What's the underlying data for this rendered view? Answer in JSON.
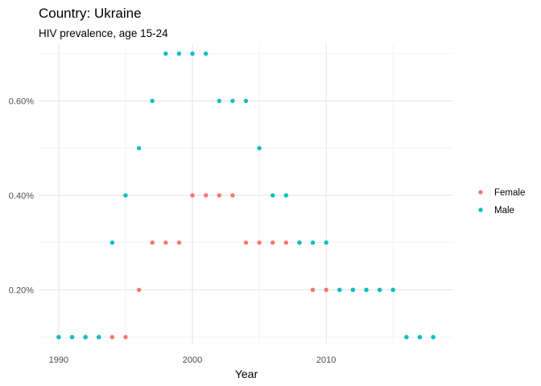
{
  "chart_data": {
    "type": "scatter",
    "title": "Country: Ukraine",
    "subtitle": "HIV prevalence, age 15-24",
    "xlabel": "Year",
    "ylabel": "",
    "xlim": [
      1988.5,
      2019.5
    ],
    "ylim": [
      0.085,
      0.72
    ],
    "x_ticks": [
      1990,
      2000,
      2010
    ],
    "x_tick_labels": [
      "1990",
      "2000",
      "2010"
    ],
    "y_ticks": [
      0.2,
      0.4,
      0.6
    ],
    "y_tick_labels": [
      "0.20%",
      "0.40%",
      "0.60%"
    ],
    "grid": true,
    "legend_position": "right",
    "series": [
      {
        "name": "Female",
        "color": "#F8766D",
        "points": [
          [
            1990,
            0.1
          ],
          [
            1991,
            0.1
          ],
          [
            1992,
            0.1
          ],
          [
            1993,
            0.1
          ],
          [
            1994,
            0.1
          ],
          [
            1995,
            0.1
          ],
          [
            1996,
            0.2
          ],
          [
            1997,
            0.3
          ],
          [
            1998,
            0.3
          ],
          [
            1999,
            0.3
          ],
          [
            2000,
            0.4
          ],
          [
            2001,
            0.4
          ],
          [
            2002,
            0.4
          ],
          [
            2003,
            0.4
          ],
          [
            2004,
            0.3
          ],
          [
            2005,
            0.3
          ],
          [
            2006,
            0.3
          ],
          [
            2007,
            0.3
          ],
          [
            2008,
            0.3
          ],
          [
            2009,
            0.2
          ],
          [
            2010,
            0.2
          ],
          [
            2011,
            0.2
          ],
          [
            2012,
            0.2
          ],
          [
            2013,
            0.2
          ],
          [
            2014,
            0.2
          ],
          [
            2015,
            0.2
          ],
          [
            2016,
            0.1
          ],
          [
            2017,
            0.1
          ],
          [
            2018,
            0.1
          ]
        ]
      },
      {
        "name": "Male",
        "color": "#00BFC4",
        "points": [
          [
            1990,
            0.1
          ],
          [
            1991,
            0.1
          ],
          [
            1992,
            0.1
          ],
          [
            1993,
            0.1
          ],
          [
            1994,
            0.3
          ],
          [
            1995,
            0.4
          ],
          [
            1996,
            0.5
          ],
          [
            1997,
            0.6
          ],
          [
            1998,
            0.7
          ],
          [
            1999,
            0.7
          ],
          [
            2000,
            0.7
          ],
          [
            2001,
            0.7
          ],
          [
            2002,
            0.6
          ],
          [
            2003,
            0.6
          ],
          [
            2004,
            0.6
          ],
          [
            2005,
            0.5
          ],
          [
            2006,
            0.4
          ],
          [
            2007,
            0.4
          ],
          [
            2008,
            0.3
          ],
          [
            2009,
            0.3
          ],
          [
            2010,
            0.3
          ],
          [
            2011,
            0.2
          ],
          [
            2012,
            0.2
          ],
          [
            2013,
            0.2
          ],
          [
            2014,
            0.2
          ],
          [
            2015,
            0.2
          ],
          [
            2016,
            0.1
          ],
          [
            2017,
            0.1
          ],
          [
            2018,
            0.1
          ]
        ]
      }
    ]
  }
}
